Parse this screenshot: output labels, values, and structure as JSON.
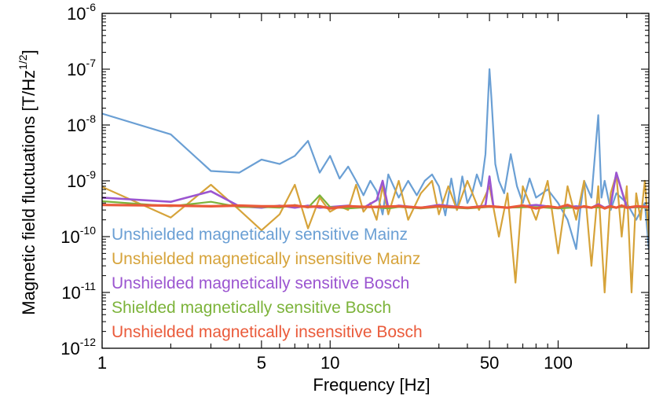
{
  "chart_data": {
    "type": "line",
    "title": "",
    "xlabel": "Frequency [Hz]",
    "ylabel_main": "Magnetic field fluctuations [T/Hz",
    "ylabel_sup": "1/2",
    "ylabel_close": "]",
    "xscale": "log",
    "yscale": "log",
    "xlim": [
      1,
      250
    ],
    "ylim": [
      1e-12,
      1e-06
    ],
    "grid": false,
    "legend_position": "bottom-left",
    "x_ticks": [
      {
        "value": 1,
        "label": "1"
      },
      {
        "value": 5,
        "label": "5"
      },
      {
        "value": 10,
        "label": "10"
      },
      {
        "value": 50,
        "label": "50"
      },
      {
        "value": 100,
        "label": "100"
      }
    ],
    "y_ticks": [
      {
        "value": 1e-12,
        "base": "10",
        "exp": "-12"
      },
      {
        "value": 1e-11,
        "base": "10",
        "exp": "-11"
      },
      {
        "value": 1e-10,
        "base": "10",
        "exp": "-10"
      },
      {
        "value": 1e-09,
        "base": "10",
        "exp": "-9"
      },
      {
        "value": 1e-08,
        "base": "10",
        "exp": "-8"
      },
      {
        "value": 1e-07,
        "base": "10",
        "exp": "-7"
      },
      {
        "value": 1e-06,
        "base": "10",
        "exp": "-6"
      }
    ],
    "series": [
      {
        "name": "Unshielded magnetically sensitive Mainz",
        "color": "#6a9fd4",
        "x": [
          1,
          2,
          3,
          4,
          5,
          6,
          7,
          8,
          9,
          10,
          11,
          12,
          13,
          14,
          15,
          16,
          17,
          18,
          20,
          22,
          24,
          26,
          28,
          30,
          32,
          34,
          36,
          38,
          40,
          42,
          44,
          46,
          48,
          50,
          51,
          53,
          55,
          58,
          62,
          66,
          70,
          75,
          80,
          90,
          100,
          110,
          120,
          125,
          130,
          140,
          150,
          155,
          160,
          170,
          180,
          200,
          220,
          240,
          250
        ],
        "y": [
          1.6e-08,
          6.8e-09,
          1.5e-09,
          1.4e-09,
          2.4e-09,
          2e-09,
          2.8e-09,
          5.2e-09,
          1.4e-09,
          2.8e-09,
          1.1e-09,
          1.8e-09,
          1e-09,
          5.5e-10,
          1e-09,
          6.5e-10,
          2.5e-10,
          1.3e-09,
          5e-10,
          1e-09,
          5.5e-10,
          1e-09,
          1.3e-09,
          8e-10,
          2.4e-10,
          1.1e-09,
          3e-10,
          1.2e-09,
          4e-10,
          6e-10,
          1.3e-09,
          8e-10,
          3e-09,
          1e-07,
          3e-08,
          2e-09,
          1e-09,
          6e-10,
          3e-09,
          8e-10,
          4e-10,
          1.1e-09,
          5e-10,
          7e-10,
          4e-10,
          2e-10,
          6e-11,
          3e-10,
          1e-09,
          5e-10,
          1.5e-08,
          5e-10,
          1e-09,
          3e-10,
          6e-10,
          4e-10,
          2e-10,
          4e-10,
          6e-11
        ]
      },
      {
        "name": "Unshielded magnetically insensitive Mainz",
        "color": "#d6a33a",
        "x": [
          1,
          2,
          3,
          4,
          5,
          6,
          7,
          8,
          9,
          10,
          11,
          12,
          13,
          14,
          15,
          16,
          17,
          18,
          20,
          22,
          25,
          28,
          30,
          33,
          36,
          40,
          45,
          50,
          55,
          60,
          65,
          70,
          80,
          90,
          100,
          110,
          120,
          130,
          140,
          150,
          160,
          170,
          180,
          190,
          200,
          210,
          220,
          230,
          240,
          250
        ],
        "y": [
          7.8e-10,
          2.2e-10,
          8.5e-10,
          3e-10,
          1.3e-10,
          2.5e-10,
          8.5e-10,
          1.4e-10,
          5e-10,
          2.8e-10,
          3.5e-10,
          3e-10,
          8.5e-10,
          2.8e-10,
          4e-10,
          2e-10,
          8e-10,
          2.5e-10,
          1e-09,
          2e-10,
          6e-10,
          1e-09,
          2.5e-10,
          8e-10,
          3e-10,
          1e-09,
          3e-10,
          8e-10,
          1e-10,
          6e-10,
          1.5e-11,
          8e-10,
          2e-10,
          1e-09,
          5e-11,
          8e-10,
          2e-10,
          1e-09,
          3e-11,
          8e-10,
          1e-11,
          6e-10,
          1.3e-09,
          1e-10,
          8e-10,
          1e-11,
          6e-10,
          2e-10,
          1e-09,
          1e-10
        ]
      },
      {
        "name": "Unshielded magnetically sensitive Bosch",
        "color": "#9b55d0",
        "x": [
          1,
          2,
          3,
          4,
          5,
          6,
          7,
          8,
          9,
          10,
          12,
          14,
          16,
          17,
          18,
          20,
          25,
          30,
          40,
          48,
          50,
          52,
          60,
          80,
          100,
          120,
          140,
          150,
          160,
          170,
          180,
          200,
          250
        ],
        "y": [
          5e-10,
          4.2e-10,
          6.5e-10,
          3.5e-10,
          3.3e-10,
          3.6e-10,
          3.3e-10,
          3.6e-10,
          3.3e-10,
          3.4e-10,
          3.6e-10,
          3.3e-10,
          4.5e-10,
          1e-09,
          3.3e-10,
          3.6e-10,
          3.3e-10,
          3.7e-10,
          3.3e-10,
          3.6e-10,
          1.2e-09,
          3.5e-10,
          3.3e-10,
          3.7e-10,
          3.3e-10,
          3.5e-10,
          3.3e-10,
          3.8e-10,
          3.3e-10,
          3.6e-10,
          1.4e-09,
          3.3e-10,
          3.5e-10
        ]
      },
      {
        "name": "Shielded magnetically sensitive Bosch",
        "color": "#7cb33a",
        "x": [
          1,
          2,
          3,
          4,
          5,
          6,
          7,
          8,
          9,
          10,
          12,
          15,
          18,
          20,
          25,
          30,
          40,
          50,
          60,
          80,
          100,
          130,
          160,
          200,
          250
        ],
        "y": [
          4.3e-10,
          3.5e-10,
          4.2e-10,
          3.4e-10,
          3.4e-10,
          3.3e-10,
          3.7e-10,
          3.3e-10,
          5.5e-10,
          3.4e-10,
          3.2e-10,
          3.4e-10,
          3.2e-10,
          3.4e-10,
          3.2e-10,
          3.4e-10,
          3.2e-10,
          3.4e-10,
          3.3e-10,
          3.4e-10,
          3.2e-10,
          3.4e-10,
          3.3e-10,
          3.4e-10,
          3.3e-10
        ]
      },
      {
        "name": "Unshielded magnetically insensitive Bosch",
        "color": "#ea5a3a",
        "x": [
          1,
          2,
          3,
          4,
          5,
          6,
          7,
          8,
          9,
          10,
          12,
          15,
          20,
          25,
          30,
          40,
          50,
          60,
          70,
          80,
          90,
          100,
          110,
          120,
          130,
          140,
          150,
          160,
          170,
          180,
          190,
          200,
          220,
          250
        ],
        "y": [
          3.7e-10,
          3.6e-10,
          3.5e-10,
          3.6e-10,
          3.5e-10,
          3.5e-10,
          3.6e-10,
          3.4e-10,
          3.5e-10,
          3.2e-10,
          3.5e-10,
          3.4e-10,
          3.5e-10,
          3.3e-10,
          3.5e-10,
          3.3e-10,
          3.5e-10,
          3.3e-10,
          3.6e-10,
          3.2e-10,
          3.5e-10,
          3.3e-10,
          3.7e-10,
          3.2e-10,
          3.5e-10,
          3.3e-10,
          3.6e-10,
          3.2e-10,
          3.5e-10,
          3.3e-10,
          3.6e-10,
          3.3e-10,
          3.5e-10,
          3.4e-10
        ]
      }
    ]
  }
}
